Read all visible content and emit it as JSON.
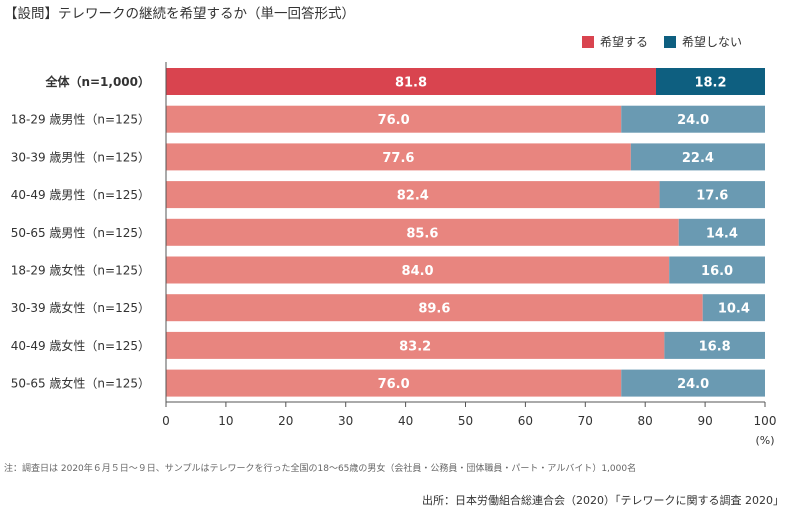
{
  "title": "【設問】テレワークの継続を希望するか（単一回答形式）",
  "note": "注：調査日は 2020年６月５日～９日、サンプルはテレワークを行った全国の18～65歳の男女（会社員・公務員・団体職員・パート・アルバイト）1,000名",
  "source": "出所：日本労働組合総連合会（2020）「テレワークに関する調査 2020」",
  "colors": {
    "hope_total": "#d9444f",
    "nohope_total": "#0e5f80",
    "hope": "#e8857f",
    "nohope": "#6a9ab2",
    "axis": "#555555",
    "grid": "#cccccc"
  },
  "chart_data": {
    "type": "bar",
    "orientation": "horizontal",
    "stacked": true,
    "categories": [
      "全体（n=1,000）",
      "18-29 歳男性（n=125）",
      "30-39 歳男性（n=125）",
      "40-49 歳男性（n=125）",
      "50-65 歳男性（n=125）",
      "18-29 歳女性（n=125）",
      "30-39 歳女性（n=125）",
      "40-49 歳女性（n=125）",
      "50-65 歳女性（n=125）"
    ],
    "series": [
      {
        "name": "希望する",
        "values": [
          81.8,
          76.0,
          77.6,
          82.4,
          85.6,
          84.0,
          89.6,
          83.2,
          76.0
        ]
      },
      {
        "name": "希望しない",
        "values": [
          18.2,
          24.0,
          22.4,
          17.6,
          14.4,
          16.0,
          10.4,
          16.8,
          24.0
        ]
      }
    ],
    "xlim": [
      0,
      100
    ],
    "xticks": [
      0,
      10,
      20,
      30,
      40,
      50,
      60,
      70,
      80,
      90,
      100
    ],
    "xunit": "(%)",
    "legend_position": "top-right",
    "grid": false
  }
}
